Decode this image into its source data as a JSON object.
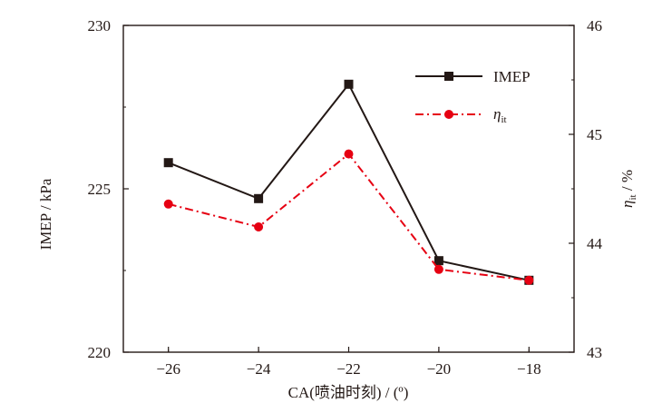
{
  "chart_data": {
    "type": "line",
    "x": [
      -26,
      -24,
      -22,
      -20,
      -18
    ],
    "xlabel": "CA(喷油时刻) / (º)",
    "xlim": [
      -27,
      -17
    ],
    "xticks": [
      -26,
      -24,
      -22,
      -20,
      -18
    ],
    "xtick_labels": [
      "−26",
      "−24",
      "−22",
      "−20",
      "−18"
    ],
    "ylabel_left": "IMEP / kPa",
    "ylim_left": [
      220,
      230
    ],
    "yticks_left": [
      220,
      225,
      230
    ],
    "ylabel_right_symbol": "η",
    "ylabel_right_subscript": "it",
    "ylabel_right_unit": " / %",
    "ylim_right": [
      43,
      46
    ],
    "yticks_right": [
      43,
      44,
      45,
      46
    ],
    "grid": false,
    "legend_position": "top-right",
    "series": [
      {
        "name": "IMEP",
        "axis": "left",
        "values": [
          225.8,
          224.7,
          228.2,
          222.8,
          222.2
        ],
        "color": "#231815",
        "marker": "square",
        "line_style": "solid",
        "legend_label": "IMEP"
      },
      {
        "name": "η_it",
        "axis": "right",
        "values": [
          44.36,
          44.15,
          44.82,
          43.76,
          43.66
        ],
        "color": "#e60012",
        "marker": "circle",
        "line_style": "dash-dot",
        "legend_symbol": "η",
        "legend_subscript": "it"
      }
    ]
  }
}
